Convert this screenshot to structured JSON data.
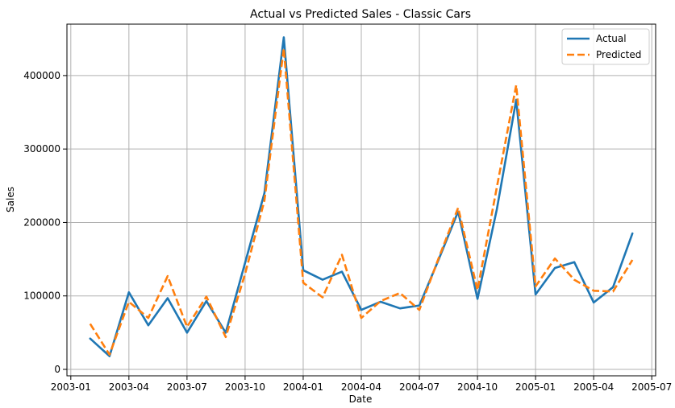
{
  "chart_data": {
    "type": "line",
    "title": "Actual vs Predicted Sales - Classic Cars",
    "xlabel": "Date",
    "ylabel": "Sales",
    "xlim": [
      "2003-01-01",
      "2005-07-01"
    ],
    "ylim": [
      0,
      470000
    ],
    "grid": true,
    "legend_position": "top-right",
    "x_tick_labels": [
      "2003-01",
      "2003-04",
      "2003-07",
      "2003-10",
      "2004-01",
      "2004-04",
      "2004-07",
      "2004-10",
      "2005-01",
      "2005-04",
      "2005-07"
    ],
    "y_ticks": [
      0,
      100000,
      200000,
      300000,
      400000
    ],
    "y_tick_labels": [
      "0",
      "100000",
      "200000",
      "300000",
      "400000"
    ],
    "x": [
      "2003-02",
      "2003-03",
      "2003-04",
      "2003-05",
      "2003-06",
      "2003-07",
      "2003-08",
      "2003-09",
      "2003-10",
      "2003-11",
      "2003-12",
      "2004-01",
      "2004-02",
      "2004-03",
      "2004-04",
      "2004-05",
      "2004-06",
      "2004-07",
      "2004-08",
      "2004-09",
      "2004-10",
      "2004-11",
      "2004-12",
      "2005-01",
      "2005-02",
      "2005-03",
      "2005-04",
      "2005-05",
      "2005-06"
    ],
    "series": [
      {
        "name": "Actual",
        "color": "#1f77b4",
        "dash": "solid",
        "values": [
          42000,
          18000,
          105000,
          60000,
          97000,
          50000,
          93000,
          50000,
          145000,
          240000,
          452000,
          135000,
          122000,
          133000,
          81000,
          92000,
          83000,
          87000,
          150000,
          215000,
          96000,
          218000,
          367000,
          102000,
          138000,
          146000,
          91000,
          112000,
          185000
        ]
      },
      {
        "name": "Predicted",
        "color": "#ff7f0e",
        "dash": "dashed",
        "values": [
          62000,
          20000,
          92000,
          70000,
          127000,
          58000,
          99000,
          44000,
          130000,
          230000,
          437000,
          118000,
          98000,
          156000,
          70000,
          93000,
          104000,
          81000,
          152000,
          220000,
          108000,
          248000,
          387000,
          113000,
          151000,
          122000,
          107000,
          106000,
          149000
        ]
      }
    ]
  }
}
